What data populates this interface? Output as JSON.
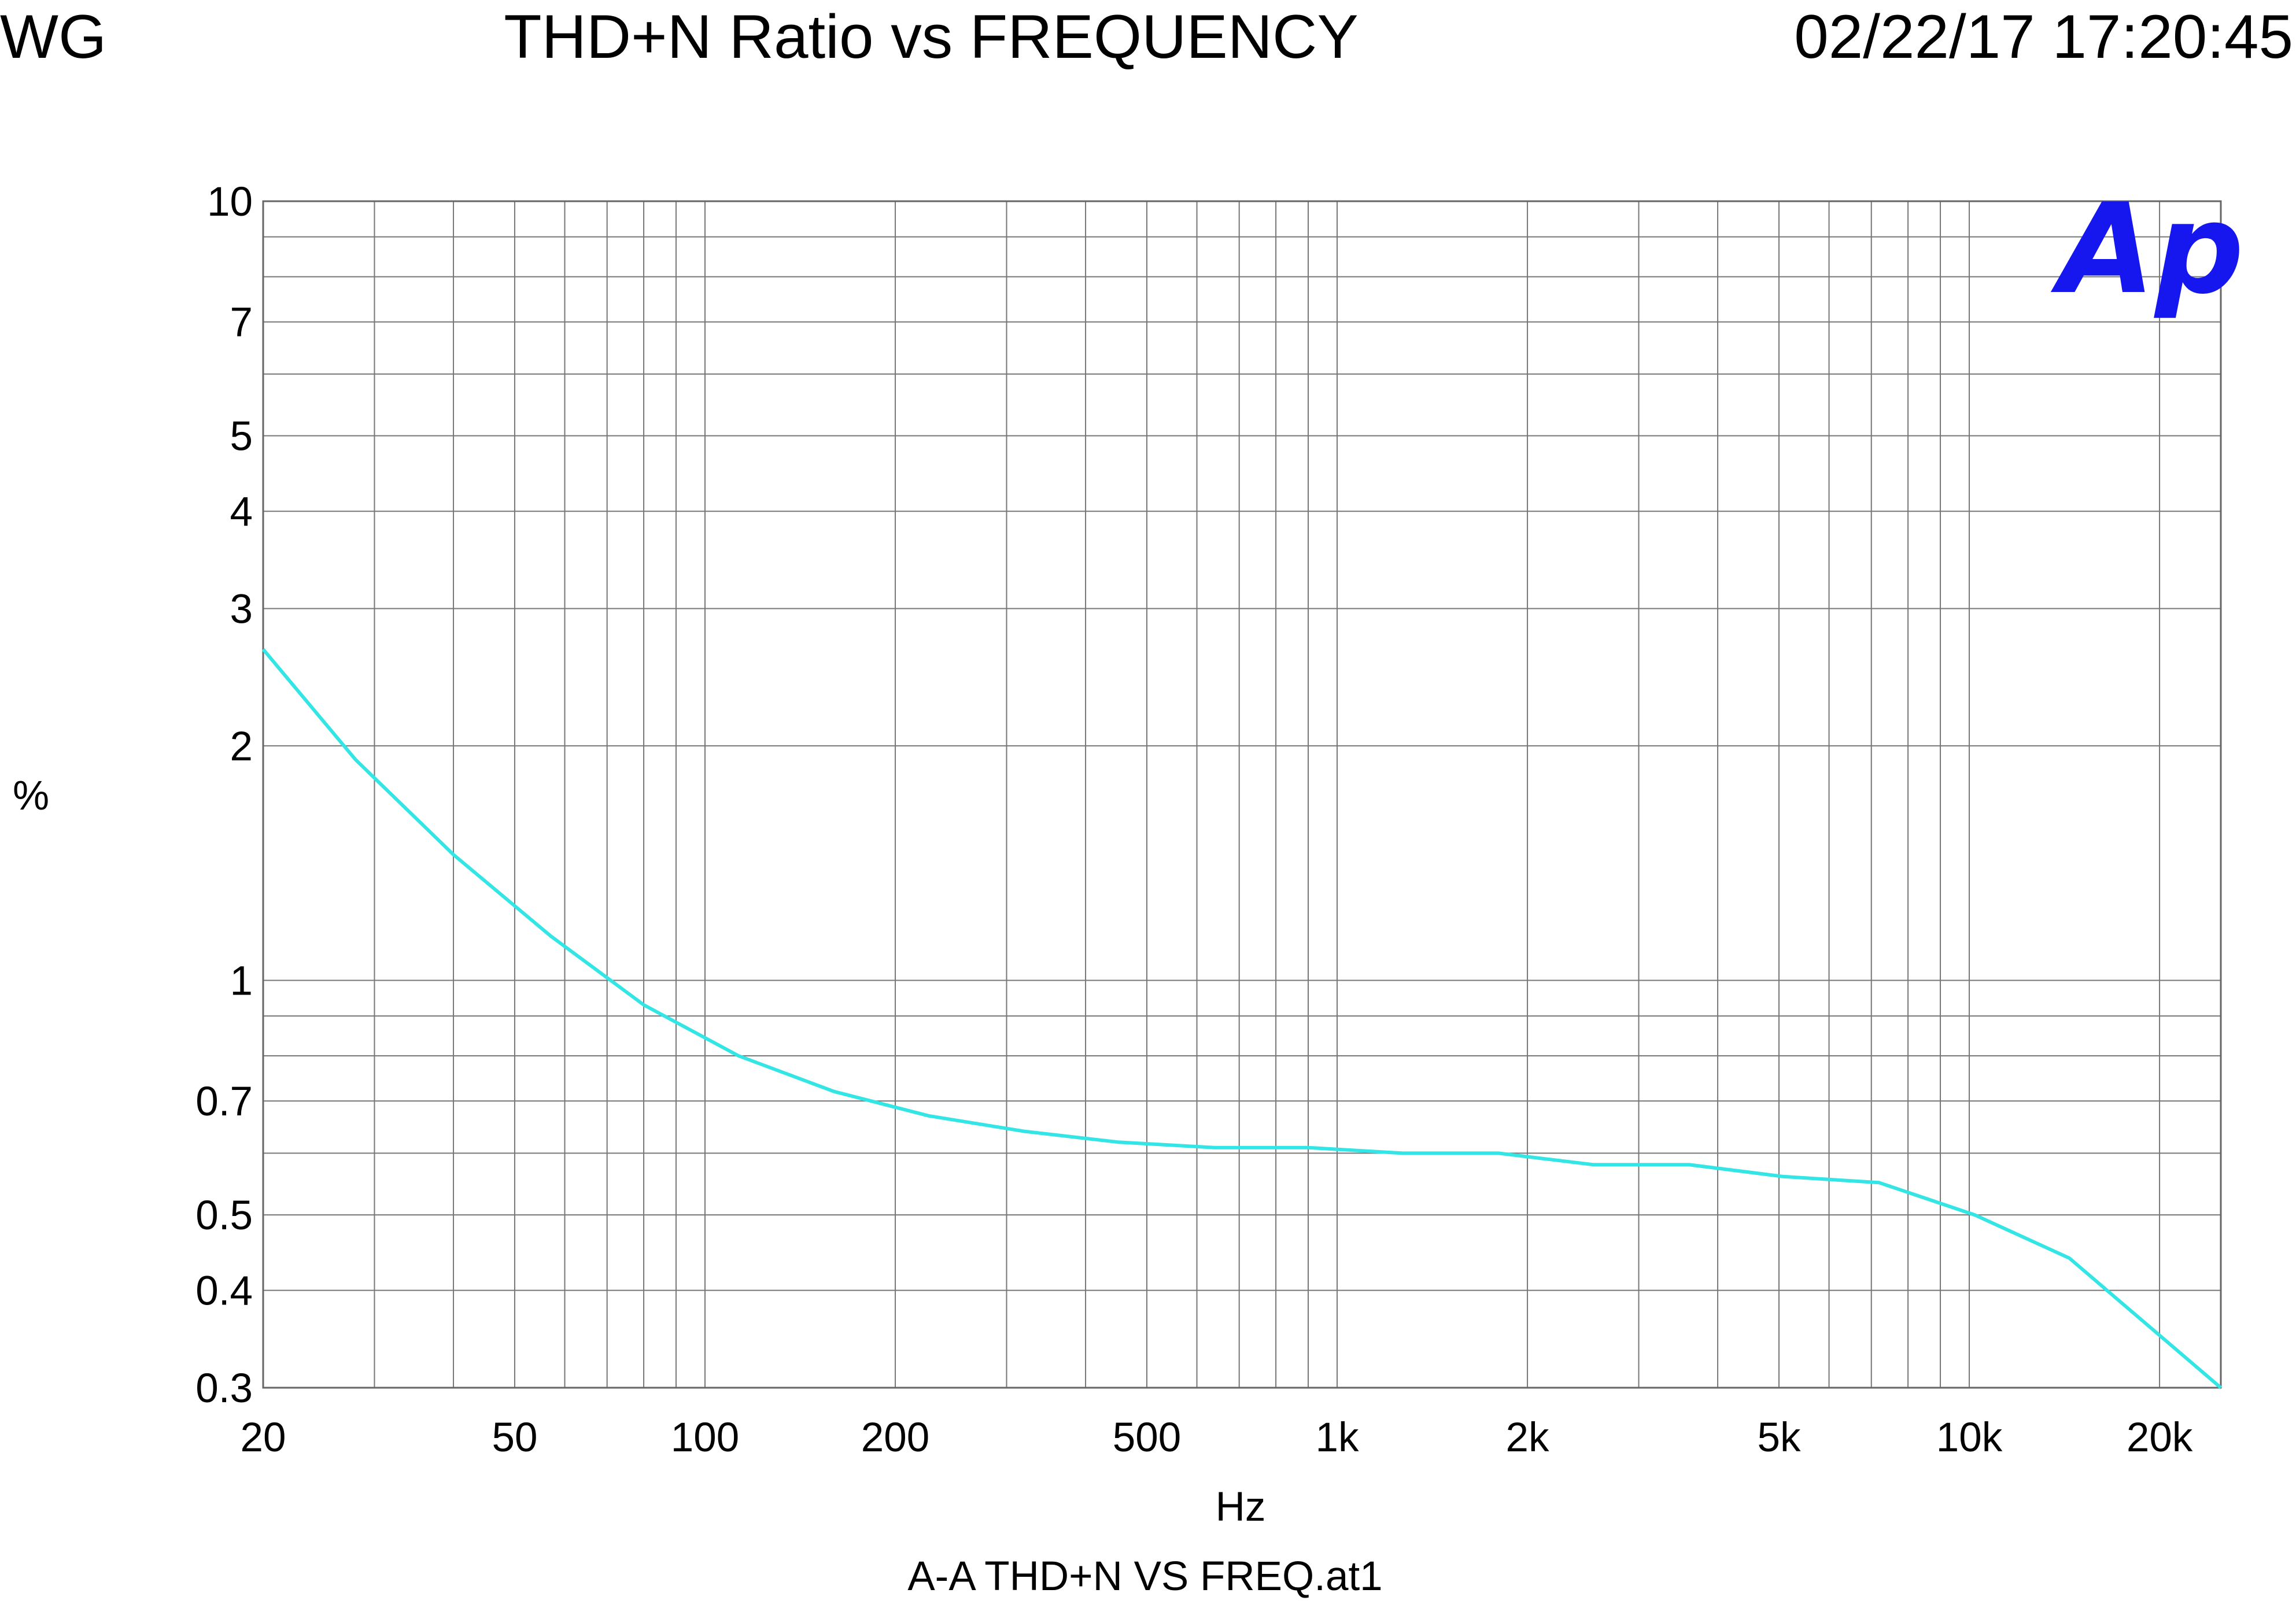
{
  "header": {
    "left": "WG",
    "title": "THD+N Ratio vs FREQUENCY",
    "timestamp": "02/22/17 17:20:45"
  },
  "logo": "Ap",
  "footer": "A-A THD+N VS FREQ.at1",
  "chart_data": {
    "type": "line",
    "title": "THD+N Ratio vs FREQUENCY",
    "xlabel": "Hz",
    "ylabel": "%",
    "xscale": "log",
    "yscale": "log",
    "xlim": [
      20,
      25000
    ],
    "ylim": [
      0.3,
      10
    ],
    "grid": true,
    "x_ticks": [
      {
        "value": 20,
        "label": "20"
      },
      {
        "value": 50,
        "label": "50"
      },
      {
        "value": 100,
        "label": "100"
      },
      {
        "value": 200,
        "label": "200"
      },
      {
        "value": 500,
        "label": "500"
      },
      {
        "value": 1000,
        "label": "1k"
      },
      {
        "value": 2000,
        "label": "2k"
      },
      {
        "value": 5000,
        "label": "5k"
      },
      {
        "value": 10000,
        "label": "10k"
      },
      {
        "value": 20000,
        "label": "20k"
      }
    ],
    "y_ticks": [
      {
        "value": 10,
        "label": "10"
      },
      {
        "value": 7,
        "label": "7"
      },
      {
        "value": 5,
        "label": "5"
      },
      {
        "value": 4,
        "label": "4"
      },
      {
        "value": 3,
        "label": "3"
      },
      {
        "value": 2,
        "label": "2"
      },
      {
        "value": 1,
        "label": "1"
      },
      {
        "value": 0.7,
        "label": "0.7"
      },
      {
        "value": 0.5,
        "label": "0.5"
      },
      {
        "value": 0.4,
        "label": "0.4"
      },
      {
        "value": 0.3,
        "label": "0.3"
      }
    ],
    "series": [
      {
        "color": "#33e5e5",
        "x": [
          20,
          28,
          40,
          57,
          80,
          113,
          160,
          226,
          320,
          450,
          640,
          900,
          1270,
          1800,
          2540,
          3600,
          5080,
          7200,
          10200,
          14400,
          25000
        ],
        "y": [
          2.66,
          1.92,
          1.45,
          1.14,
          0.93,
          0.8,
          0.72,
          0.67,
          0.64,
          0.62,
          0.61,
          0.61,
          0.6,
          0.6,
          0.58,
          0.58,
          0.56,
          0.55,
          0.5,
          0.44,
          0.3
        ]
      }
    ]
  }
}
